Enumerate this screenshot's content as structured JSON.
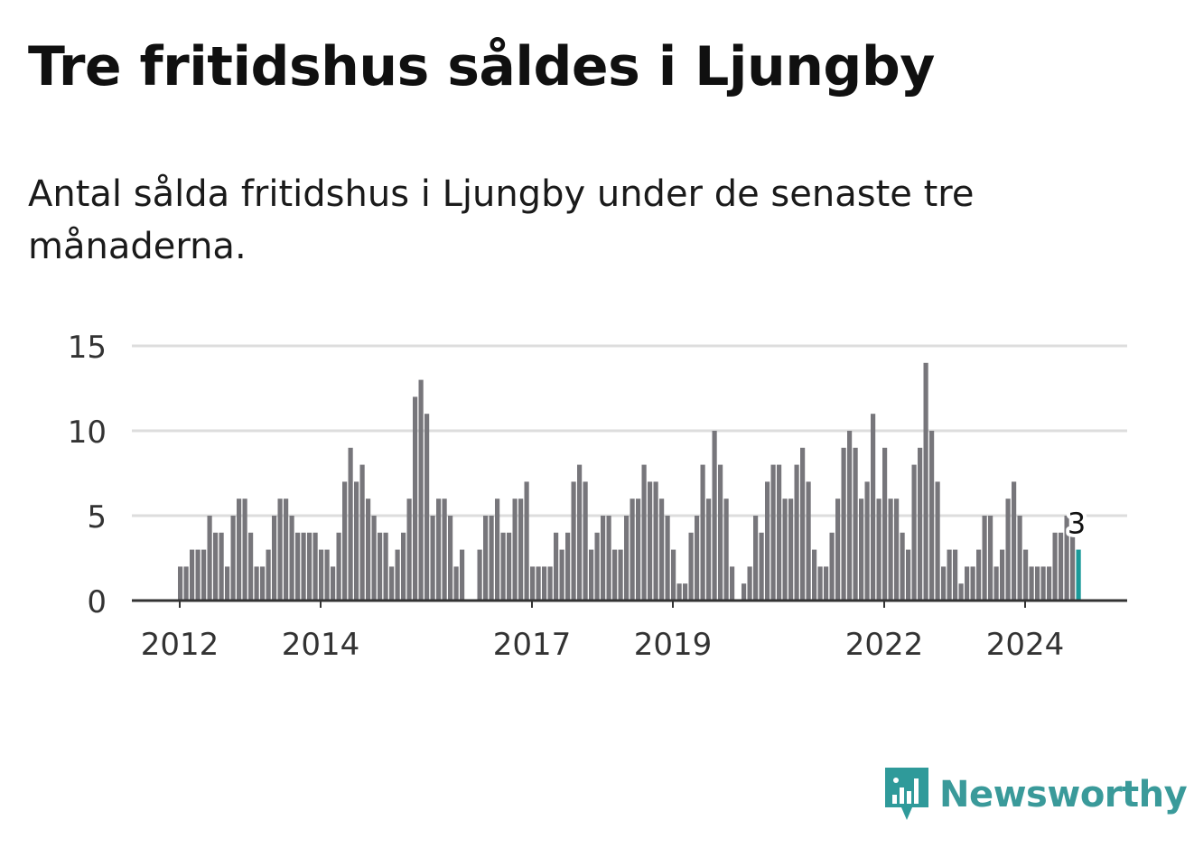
{
  "title": "Tre fritidshus såldes i Ljungby",
  "subtitle": "Antal sålda fritidshus i Ljungby under de senaste tre månaderna.",
  "brand": {
    "name": "Newsworthy",
    "icon": "newsworthy-logo-icon",
    "color": "#2f9a9a"
  },
  "chart_data": {
    "type": "bar",
    "title": "Tre fritidshus såldes i Ljungby",
    "xlabel": "",
    "ylabel": "",
    "ylim": [
      0,
      15
    ],
    "yticks": [
      0,
      5,
      10,
      15
    ],
    "grid": true,
    "start": "2012-01",
    "xtick_labels": [
      {
        "label": "2012",
        "date": "2012-01"
      },
      {
        "label": "2014",
        "date": "2014-01"
      },
      {
        "label": "2017",
        "date": "2017-01"
      },
      {
        "label": "2019",
        "date": "2019-01"
      },
      {
        "label": "2022",
        "date": "2022-01"
      },
      {
        "label": "2024",
        "date": "2024-01"
      }
    ],
    "colors": {
      "bar": "#77767b",
      "highlight": "#1a9a9a",
      "grid": "#dddddd",
      "axis": "#333333"
    },
    "highlight_label": "3",
    "values": [
      2,
      2,
      3,
      3,
      3,
      5,
      4,
      4,
      2,
      5,
      6,
      6,
      4,
      2,
      2,
      3,
      5,
      6,
      6,
      5,
      4,
      4,
      4,
      4,
      3,
      3,
      2,
      4,
      7,
      9,
      7,
      8,
      6,
      5,
      4,
      4,
      2,
      3,
      4,
      6,
      12,
      13,
      11,
      5,
      6,
      6,
      5,
      2,
      3,
      0,
      0,
      3,
      5,
      5,
      6,
      4,
      4,
      6,
      6,
      7,
      2,
      2,
      2,
      2,
      4,
      3,
      4,
      7,
      8,
      7,
      3,
      4,
      5,
      5,
      3,
      3,
      5,
      6,
      6,
      8,
      7,
      7,
      6,
      5,
      3,
      1,
      1,
      4,
      5,
      8,
      6,
      10,
      8,
      6,
      2,
      0,
      1,
      2,
      5,
      4,
      7,
      8,
      8,
      6,
      6,
      8,
      9,
      7,
      3,
      2,
      2,
      4,
      6,
      9,
      10,
      9,
      6,
      7,
      11,
      6,
      9,
      6,
      6,
      4,
      3,
      8,
      9,
      14,
      10,
      7,
      2,
      3,
      3,
      1,
      2,
      2,
      3,
      5,
      5,
      2,
      3,
      6,
      7,
      5,
      3,
      2,
      2,
      2,
      2,
      4,
      4,
      5,
      4,
      3
    ]
  }
}
